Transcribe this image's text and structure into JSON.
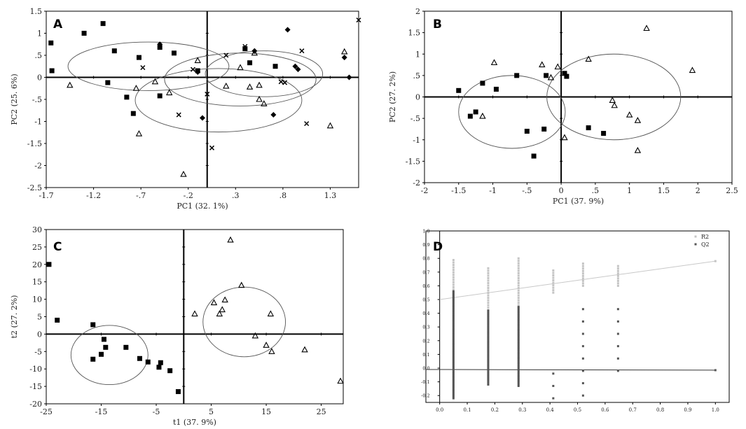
{
  "chart_data": [
    {
      "panel": "A",
      "type": "scatter",
      "xlabel": "PC1 (32. 1%)",
      "ylabel": "PC2 (25. 6%)",
      "xlim": [
        -1.7,
        1.6
      ],
      "ylim": [
        -2.5,
        1.5
      ],
      "xticks": [
        -1.7,
        -1.2,
        -0.7,
        -0.2,
        0.3,
        0.8,
        1.3
      ],
      "yticks": [
        1.5,
        1,
        0.5,
        0,
        -0.5,
        -1,
        -1.5,
        -2,
        -2.5
      ],
      "series": [
        {
          "marker": "square",
          "points": [
            [
              -1.65,
              0.78
            ],
            [
              -1.64,
              0.15
            ],
            [
              -1.3,
              1.0
            ],
            [
              -1.1,
              1.22
            ],
            [
              -1.05,
              -0.12
            ],
            [
              -0.98,
              0.6
            ],
            [
              -0.85,
              -0.45
            ],
            [
              -0.78,
              -0.82
            ],
            [
              -0.72,
              0.45
            ],
            [
              -0.5,
              0.68
            ],
            [
              -0.5,
              -0.42
            ],
            [
              -0.35,
              0.55
            ],
            [
              -0.1,
              0.15
            ],
            [
              0.4,
              0.65
            ],
            [
              0.45,
              0.33
            ],
            [
              0.72,
              0.25
            ]
          ]
        },
        {
          "marker": "diamond",
          "points": [
            [
              -0.5,
              0.75
            ],
            [
              -0.1,
              0.12
            ],
            [
              -0.05,
              -0.92
            ],
            [
              0.5,
              0.6
            ],
            [
              0.7,
              -0.85
            ],
            [
              0.85,
              1.08
            ],
            [
              0.93,
              0.25
            ],
            [
              0.96,
              0.18
            ],
            [
              1.45,
              0.45
            ],
            [
              1.5,
              0.0
            ]
          ]
        },
        {
          "marker": "triangle",
          "points": [
            [
              -1.45,
              -0.18
            ],
            [
              -0.75,
              -0.25
            ],
            [
              -0.72,
              -1.28
            ],
            [
              -0.55,
              -0.1
            ],
            [
              -0.4,
              -0.35
            ],
            [
              -0.25,
              -2.2
            ],
            [
              -0.1,
              0.38
            ],
            [
              0.2,
              -0.2
            ],
            [
              0.35,
              0.22
            ],
            [
              0.45,
              -0.22
            ],
            [
              0.5,
              0.55
            ],
            [
              0.55,
              -0.18
            ],
            [
              0.55,
              -0.5
            ],
            [
              0.6,
              -0.6
            ],
            [
              1.3,
              -1.1
            ],
            [
              1.45,
              0.58
            ]
          ]
        },
        {
          "marker": "x",
          "points": [
            [
              -0.68,
              0.22
            ],
            [
              -0.15,
              0.18
            ],
            [
              -0.3,
              -0.85
            ],
            [
              0.0,
              -0.38
            ],
            [
              0.05,
              -1.6
            ],
            [
              0.2,
              0.5
            ],
            [
              0.4,
              0.7
            ],
            [
              0.78,
              -0.1
            ],
            [
              0.82,
              -0.12
            ],
            [
              1.0,
              0.6
            ],
            [
              1.05,
              -1.05
            ],
            [
              1.6,
              1.3
            ]
          ]
        }
      ],
      "ellipses": [
        {
          "center": [
            -0.62,
            0.25
          ],
          "radii": [
            0.85,
            0.55
          ]
        },
        {
          "center": [
            0.12,
            -0.52
          ],
          "radii": [
            0.88,
            0.72
          ]
        },
        {
          "center": [
            0.6,
            0.08
          ],
          "radii": [
            0.62,
            0.52
          ]
        },
        {
          "center": [
            0.35,
            -0.05
          ],
          "radii": [
            0.8,
            0.6
          ]
        }
      ],
      "grid": false
    },
    {
      "panel": "B",
      "type": "scatter",
      "xlabel": "PC1 (37. 9%)",
      "ylabel": "PC2 (27. 2%)",
      "xlim": [
        -2,
        2.5
      ],
      "ylim": [
        -2,
        2
      ],
      "xticks": [
        -2,
        -1.5,
        -1,
        -0.5,
        0,
        0.5,
        1,
        1.5,
        2,
        2.5
      ],
      "yticks": [
        2,
        1.5,
        1,
        0.5,
        0,
        -0.5,
        -1,
        -1.5,
        -2
      ],
      "series": [
        {
          "marker": "square",
          "points": [
            [
              -1.5,
              0.15
            ],
            [
              -1.33,
              -0.45
            ],
            [
              -1.25,
              -0.35
            ],
            [
              -1.15,
              0.32
            ],
            [
              -0.95,
              0.18
            ],
            [
              -0.65,
              0.5
            ],
            [
              -0.5,
              -0.8
            ],
            [
              -0.4,
              -1.38
            ],
            [
              -0.25,
              -0.75
            ],
            [
              -0.22,
              0.5
            ],
            [
              0.05,
              0.55
            ],
            [
              0.08,
              0.48
            ],
            [
              0.4,
              -0.72
            ],
            [
              0.62,
              -0.85
            ]
          ]
        },
        {
          "marker": "triangle",
          "points": [
            [
              -1.15,
              -0.45
            ],
            [
              -0.98,
              0.8
            ],
            [
              -0.28,
              0.75
            ],
            [
              -0.15,
              0.45
            ],
            [
              -0.05,
              0.7
            ],
            [
              0.05,
              -0.95
            ],
            [
              0.4,
              0.88
            ],
            [
              0.75,
              -0.08
            ],
            [
              0.78,
              -0.2
            ],
            [
              1.0,
              -0.42
            ],
            [
              1.12,
              -0.55
            ],
            [
              1.12,
              -1.25
            ],
            [
              1.25,
              1.6
            ],
            [
              1.92,
              0.62
            ]
          ]
        }
      ],
      "ellipses": [
        {
          "center": [
            -0.72,
            -0.35
          ],
          "radii": [
            0.78,
            0.85
          ]
        },
        {
          "center": [
            0.77,
            0.0
          ],
          "radii": [
            0.98,
            1.0
          ]
        }
      ],
      "grid": false
    },
    {
      "panel": "C",
      "type": "scatter",
      "xlabel": "t1 (37. 9%)",
      "ylabel": "t2 (27. 2%)",
      "xlim": [
        -25,
        29
      ],
      "ylim": [
        -20,
        30
      ],
      "xticks": [
        -25,
        -15,
        -5,
        5,
        15,
        25
      ],
      "yticks": [
        30,
        25,
        20,
        15,
        10,
        5,
        0,
        -5,
        -10,
        -15,
        -20
      ],
      "series": [
        {
          "marker": "square",
          "points": [
            [
              -24.5,
              20
            ],
            [
              -23,
              4
            ],
            [
              -16.5,
              2.7
            ],
            [
              -16.5,
              -7.2
            ],
            [
              -15,
              -5.8
            ],
            [
              -14.5,
              -1.5
            ],
            [
              -14.2,
              -3.8
            ],
            [
              -10.5,
              -3.8
            ],
            [
              -8,
              -7
            ],
            [
              -6.5,
              -8
            ],
            [
              -4.5,
              -9.5
            ],
            [
              -4.2,
              -8.2
            ],
            [
              -2.5,
              -10.5
            ],
            [
              -1,
              -16.5
            ]
          ]
        },
        {
          "marker": "triangle",
          "points": [
            [
              2,
              5.8
            ],
            [
              5.5,
              9
            ],
            [
              6.5,
              5.8
            ],
            [
              7,
              7
            ],
            [
              7.5,
              9.8
            ],
            [
              8.5,
              27
            ],
            [
              10.5,
              14
            ],
            [
              13,
              -0.5
            ],
            [
              15,
              -3.2
            ],
            [
              15.8,
              5.8
            ],
            [
              16,
              -5
            ],
            [
              22,
              -4.5
            ],
            [
              28.5,
              -13.5
            ]
          ]
        }
      ],
      "ellipses": [
        {
          "center": [
            -13.5,
            -6.0
          ],
          "radii": [
            7.0,
            8.5
          ]
        },
        {
          "center": [
            11.0,
            3.5
          ],
          "radii": [
            7.5,
            10.0
          ]
        }
      ],
      "grid": false
    },
    {
      "panel": "D",
      "type": "scatter",
      "legend": [
        "R2",
        "Q2"
      ],
      "legend_position": "top-right",
      "xlim": [
        -0.05,
        1.05
      ],
      "ylim": [
        -0.25,
        1.0
      ],
      "xticks": [
        0.0,
        0.1,
        0.2,
        0.3,
        0.4,
        0.5,
        0.6,
        0.7,
        0.8,
        0.9,
        1.0
      ],
      "yticks": [
        1.0,
        0.9,
        0.8,
        0.7,
        0.6,
        0.5,
        0.4,
        0.3,
        0.2,
        0.1,
        0.0,
        -0.1,
        -0.2
      ],
      "r2_columns": [
        {
          "x": 0.05,
          "ymin": 0.5,
          "ymax": 0.79
        },
        {
          "x": 0.176,
          "ymin": 0.44,
          "ymax": 0.74
        },
        {
          "x": 0.286,
          "ymin": 0.44,
          "ymax": 0.81
        },
        {
          "x": 0.412,
          "ymin": 0.55,
          "ymax": 0.72
        },
        {
          "x": 0.52,
          "ymin": 0.6,
          "ymax": 0.77
        },
        {
          "x": 0.647,
          "ymin": 0.6,
          "ymax": 0.75
        }
      ],
      "q2_columns": [
        {
          "x": 0.05,
          "ymin": -0.22,
          "ymax": 0.56
        },
        {
          "x": 0.176,
          "ymin": -0.12,
          "ymax": 0.42
        },
        {
          "x": 0.286,
          "ymin": -0.13,
          "ymax": 0.45
        },
        {
          "x": 0.412,
          "ymin": -0.22,
          "ymax": 0.04
        },
        {
          "x": 0.52,
          "ymin": -0.2,
          "ymax": 0.5
        },
        {
          "x": 0.647,
          "ymin": -0.02,
          "ymax": 0.48
        }
      ],
      "r2_line": {
        "intercept": 0.5,
        "end": [
          1.0,
          0.78
        ]
      },
      "q2_line": {
        "intercept": -0.01,
        "end": [
          1.0,
          -0.015
        ]
      },
      "grid": false
    }
  ]
}
